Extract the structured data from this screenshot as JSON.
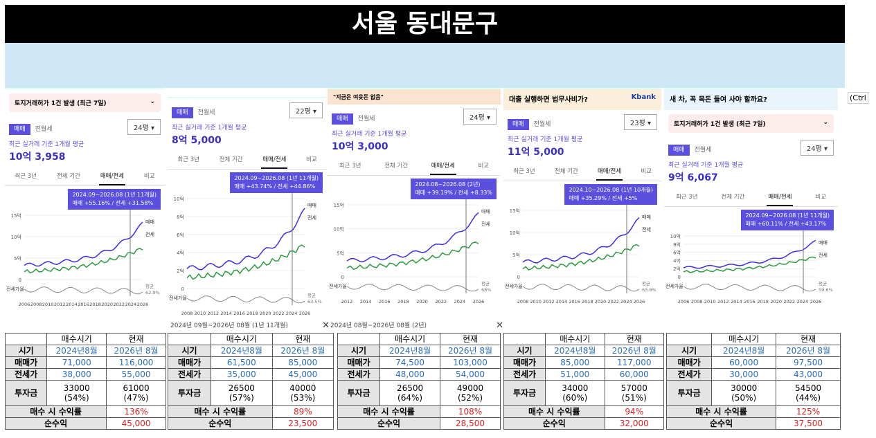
{
  "title": "서울 동대문구",
  "side_label": "(Ctrl",
  "panels": [
    {
      "ad": null,
      "permit": "토지거래허가 1건 발생 (최근 7일)",
      "tabs": [
        "매매",
        "전월세"
      ],
      "size": "24평",
      "avg_label": "최근 실거래 기준 1개월 평균",
      "avg_price": "10억 3,958",
      "period_tabs": [
        "최근 3년",
        "전체 기간",
        "매매/전세",
        "비교"
      ],
      "tooltip": [
        "2024.09~2026.08 (1년 11개월)",
        "매매 +55.16% / 전세 +31.58%"
      ],
      "yticks": [
        "15억",
        "10억",
        "5억",
        "0"
      ],
      "legend": [
        "매매",
        "전세"
      ],
      "ratio_label": "전세가율",
      "ratio_value": [
        "평균",
        "62.9%"
      ],
      "xticks": [
        "2006",
        "2008",
        "2010",
        "2012",
        "2014",
        "2016",
        "2018",
        "2020",
        "2022",
        "2024",
        "2026"
      ],
      "caption": null,
      "table": {
        "header": [
          "매수시기",
          "현재"
        ],
        "rows": [
          [
            "시기",
            "2024년8월",
            "2026년 8월"
          ],
          [
            "매매가",
            "71,000",
            "116,000"
          ],
          [
            "전세가",
            "38,000",
            "55,000"
          ],
          [
            "투자금",
            [
              "33000",
              "(54%)"
            ],
            [
              "61000",
              "(47%)"
            ]
          ]
        ],
        "yield": [
          "매수 시 수익률",
          "136%"
        ],
        "profit": [
          "순수익",
          "45,000"
        ]
      }
    },
    {
      "ad": null,
      "permit": null,
      "tabs": [
        "매매",
        "전월세"
      ],
      "size": "22평",
      "avg_label": "최근 실거래 기준 1개월 평균",
      "avg_price": "8억 5,000",
      "period_tabs": [
        "최근 3년",
        "전체 기간",
        "매매/전세",
        "비교"
      ],
      "tooltip": [
        "2024.09~2026.08 (1년 11개월)",
        "매매 +43.74% / 전세 +44.86%"
      ],
      "yticks": [
        "10억",
        "8억",
        "6억",
        "4억",
        "2억",
        "0"
      ],
      "legend": [
        "매매",
        "전세"
      ],
      "ratio_label": "전세가율",
      "ratio_value": [
        "평균",
        "63.5%"
      ],
      "xticks": [
        "2008",
        "2010",
        "2012",
        "2014",
        "2016",
        "2018",
        "2020",
        "2022",
        "2024",
        "2026"
      ],
      "caption": "2024년 09월~2026년 08월 (1년 11개월)",
      "table": {
        "header": [
          "매수시기",
          "현재"
        ],
        "rows": [
          [
            "시기",
            "2024년8월",
            "2026년 8월"
          ],
          [
            "매매가",
            "61,500",
            "85,000"
          ],
          [
            "전세가",
            "35,000",
            "45,000"
          ],
          [
            "투자금",
            [
              "26500",
              "(57%)"
            ],
            [
              "40000",
              "(53%)"
            ]
          ]
        ],
        "yield": [
          "매수 시 수익률",
          "89%"
        ],
        "profit": [
          "순수익",
          "23,500"
        ]
      }
    },
    {
      "ad": "\"지금은 여윳돈 없음\"",
      "permit": null,
      "tabs": [
        "매매",
        "전월세"
      ],
      "size": "24평",
      "avg_label": "최근 실거래 기준 1개월 평균",
      "avg_price": "10억 3,000",
      "period_tabs": [
        "최근 3년",
        "전체 기간",
        "매매/전세",
        "비교"
      ],
      "tooltip": [
        "2024.08~2026.08 (2년)",
        "매매 +39.19% / 전세 +8.33%"
      ],
      "yticks": [
        "15억",
        "10억",
        "5억",
        "0"
      ],
      "legend": [
        "매매",
        "전세"
      ],
      "ratio_label": "전세가율",
      "ratio_value": [
        "평균",
        "68%"
      ],
      "xticks": [
        "2012",
        "2014",
        "2016",
        "2018",
        "2020",
        "2022",
        "2024",
        "2026"
      ],
      "caption": "2024년 08월~2026년 08월 (2년)",
      "table": {
        "header": [
          "매수시기",
          "현재"
        ],
        "rows": [
          [
            "시기",
            "2024년8월",
            "2026년 8월"
          ],
          [
            "매매가",
            "74,500",
            "103,000"
          ],
          [
            "전세가",
            "48,000",
            "54,000"
          ],
          [
            "투자금",
            [
              "26500",
              "(64%)"
            ],
            [
              "49000",
              "(52%)"
            ]
          ]
        ],
        "yield": [
          "매수 시 수익률",
          "108%"
        ],
        "profit": [
          "순수익",
          "28,500"
        ]
      }
    },
    {
      "ad": "대출 실행하면 법무사비가?",
      "ad_brand": "Kbank",
      "permit": null,
      "tabs": [
        "매매",
        "전월세"
      ],
      "size": "23평",
      "avg_label": "최근 실거래 기준 1개월 평균",
      "avg_price": "11억 5,000",
      "period_tabs": [
        "최근 3년",
        "전체 기간",
        "매매/전세",
        "비교"
      ],
      "tooltip": [
        "2024.10~2026.08 (1년 10개월)",
        "매매 +35.29% / 전세 +5%"
      ],
      "yticks": [
        "15억",
        "10억",
        "5억",
        "0"
      ],
      "legend": [
        "매매",
        "전세"
      ],
      "ratio_label": "전세가율",
      "ratio_value": [
        "평균",
        "63.8%"
      ],
      "xticks": [
        "2008",
        "2010",
        "2012",
        "2014",
        "2016",
        "2018",
        "2020",
        "2022",
        "2024",
        "2026"
      ],
      "caption": null,
      "table": {
        "header": [
          "매수시기",
          "현재"
        ],
        "rows": [
          [
            "시기",
            "2024년8월",
            "2026년 8월"
          ],
          [
            "매매가",
            "85,000",
            "117,000"
          ],
          [
            "전세가",
            "51,000",
            "60,000"
          ],
          [
            "투자금",
            [
              "34000",
              "(60%)"
            ],
            [
              "57000",
              "(51%)"
            ]
          ]
        ],
        "yield": [
          "매수 시 수익률",
          "94%"
        ],
        "profit": [
          "순수익",
          "32,000"
        ]
      }
    },
    {
      "ad": "새 차, 꼭 목돈 들여 사야 할까요?",
      "permit": "토지거래허가 1건 발생 (최근 7일)",
      "tabs": [
        "매매",
        "전월세"
      ],
      "size": "24평",
      "avg_label": "최근 실거래 기준 1개월 평균",
      "avg_price": "9억 6,067",
      "period_tabs": [
        "최근 3년",
        "전체 기간",
        "매매/전세",
        "비교"
      ],
      "tooltip": [
        "2024.09~2026.08 (1년 11개월)",
        "매매 +60.11% / 전세 +43.17%"
      ],
      "yticks": [
        "10억",
        "8억",
        "6억",
        "4억",
        "2억",
        "0"
      ],
      "legend": [
        "매매",
        "전세"
      ],
      "ratio_label": "전세가율",
      "ratio_value": [
        "평균",
        "59.8%"
      ],
      "xticks": [
        "2006",
        "2008",
        "2010",
        "2012",
        "2014",
        "2016",
        "2018",
        "2020",
        "2022",
        "2024",
        "2026"
      ],
      "caption": null,
      "table": {
        "header": [
          "매수시기",
          "현재"
        ],
        "rows": [
          [
            "시기",
            "2024년8월",
            "2026년 8월"
          ],
          [
            "매매가",
            "60,000",
            "97,500"
          ],
          [
            "전세가",
            "30,000",
            "43,000"
          ],
          [
            "투자금",
            [
              "30000",
              "(50%)"
            ],
            [
              "54500",
              "(44%)"
            ]
          ]
        ],
        "yield": [
          "매수 시 수익률",
          "125%"
        ],
        "profit": [
          "순수익",
          "37,500"
        ]
      }
    }
  ]
}
